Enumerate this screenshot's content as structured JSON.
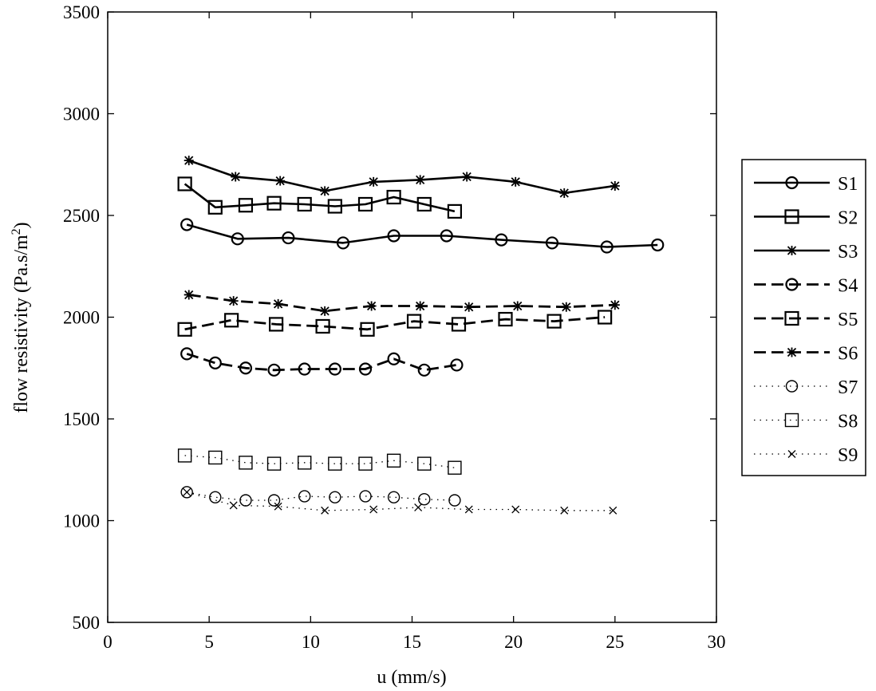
{
  "chart_data": {
    "type": "line",
    "title": "",
    "xlabel": "u (mm/s)",
    "ylabel_main": "flow resistivity (Pa.s/m",
    "ylabel_sup": "2",
    "ylabel_close": ")",
    "xlim": [
      0,
      30
    ],
    "ylim": [
      500,
      3500
    ],
    "xticks": [
      0,
      5,
      10,
      15,
      20,
      25,
      30
    ],
    "yticks": [
      500,
      1000,
      1500,
      2000,
      2500,
      3000,
      3500
    ],
    "grid": false,
    "legend_position": "outside-right",
    "series": [
      {
        "name": "S1",
        "line": "solid",
        "marker": "circle",
        "x": [
          3.9,
          6.4,
          8.9,
          11.6,
          14.1,
          16.7,
          19.4,
          21.9,
          24.6,
          27.1
        ],
        "y": [
          2455,
          2385,
          2390,
          2365,
          2400,
          2400,
          2380,
          2365,
          2345,
          2355
        ]
      },
      {
        "name": "S2",
        "line": "solid",
        "marker": "square",
        "x": [
          3.8,
          5.3,
          6.8,
          8.2,
          9.7,
          11.2,
          12.7,
          14.1,
          15.6,
          17.1
        ],
        "y": [
          2655,
          2540,
          2550,
          2560,
          2555,
          2545,
          2555,
          2590,
          2555,
          2520
        ]
      },
      {
        "name": "S3",
        "line": "solid",
        "marker": "star",
        "x": [
          4.0,
          6.3,
          8.5,
          10.7,
          13.1,
          15.4,
          17.7,
          20.1,
          22.5,
          25.0
        ],
        "y": [
          2770,
          2690,
          2670,
          2620,
          2665,
          2675,
          2690,
          2665,
          2610,
          2645
        ]
      },
      {
        "name": "S4",
        "line": "dashed",
        "marker": "circle",
        "x": [
          3.9,
          5.3,
          6.8,
          8.2,
          9.7,
          11.2,
          12.7,
          14.1,
          15.6,
          17.2
        ],
        "y": [
          1820,
          1775,
          1750,
          1740,
          1745,
          1745,
          1745,
          1795,
          1740,
          1765
        ]
      },
      {
        "name": "S5",
        "line": "dashed",
        "marker": "square",
        "x": [
          3.8,
          6.1,
          8.3,
          10.6,
          12.8,
          15.1,
          17.3,
          19.6,
          22.0,
          24.5
        ],
        "y": [
          1940,
          1985,
          1965,
          1955,
          1940,
          1980,
          1965,
          1990,
          1980,
          2000
        ]
      },
      {
        "name": "S6",
        "line": "dashed",
        "marker": "star",
        "x": [
          4.0,
          6.2,
          8.4,
          10.7,
          13.0,
          15.4,
          17.8,
          20.2,
          22.6,
          25.0
        ],
        "y": [
          2110,
          2080,
          2065,
          2030,
          2055,
          2055,
          2050,
          2055,
          2050,
          2060
        ]
      },
      {
        "name": "S7",
        "line": "dotted",
        "marker": "circle",
        "x": [
          3.9,
          5.3,
          6.8,
          8.2,
          9.7,
          11.2,
          12.7,
          14.1,
          15.6,
          17.1
        ],
        "y": [
          1140,
          1115,
          1100,
          1100,
          1120,
          1115,
          1120,
          1115,
          1105,
          1100
        ]
      },
      {
        "name": "S8",
        "line": "dotted",
        "marker": "square",
        "x": [
          3.8,
          5.3,
          6.8,
          8.2,
          9.7,
          11.2,
          12.7,
          14.1,
          15.6,
          17.1
        ],
        "y": [
          1320,
          1310,
          1285,
          1280,
          1285,
          1280,
          1280,
          1295,
          1280,
          1260
        ]
      },
      {
        "name": "S9",
        "line": "dotted",
        "marker": "x",
        "x": [
          3.9,
          6.2,
          8.4,
          10.7,
          13.1,
          15.3,
          17.8,
          20.1,
          22.5,
          24.9
        ],
        "y": [
          1140,
          1075,
          1070,
          1050,
          1055,
          1065,
          1055,
          1055,
          1050,
          1050
        ]
      }
    ]
  }
}
